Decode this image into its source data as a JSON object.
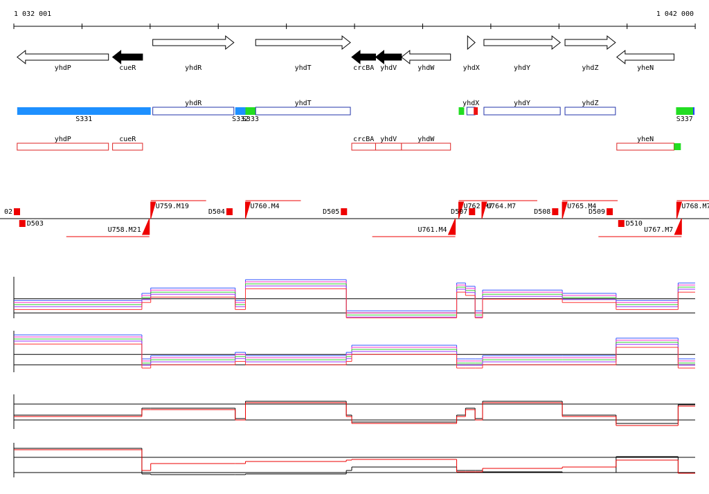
{
  "ruler": {
    "start": {
      "value": 1032001,
      "label": "1 032 001"
    },
    "end": {
      "value": 1042000,
      "label": "1 042 000"
    },
    "tick_interval": 1000
  },
  "genes": [
    {
      "name": "yhdP",
      "start": 1032050,
      "end": 1033390,
      "strand": "-",
      "fill": "#ffffff"
    },
    {
      "name": "cueR",
      "start": 1033450,
      "end": 1033890,
      "strand": "-",
      "fill": "#000000"
    },
    {
      "name": "yhdR",
      "start": 1034040,
      "end": 1035230,
      "strand": "+",
      "fill": "#ffffff"
    },
    {
      "name": "yhdT",
      "start": 1035550,
      "end": 1036940,
      "strand": "+",
      "fill": "#ffffff"
    },
    {
      "name": "crcBA",
      "start": 1036960,
      "end": 1037310,
      "strand": "-",
      "fill": "#000000"
    },
    {
      "name": "yhdV",
      "start": 1037310,
      "end": 1037690,
      "strand": "-",
      "fill": "#000000"
    },
    {
      "name": "yhdW",
      "start": 1037690,
      "end": 1038410,
      "strand": "-",
      "fill": "#ffffff"
    },
    {
      "name": "yhdX",
      "start": 1038660,
      "end": 1038770,
      "strand": "+",
      "fill": "#ffffff"
    },
    {
      "name": "yhdY",
      "start": 1038900,
      "end": 1040020,
      "strand": "+",
      "fill": "#ffffff"
    },
    {
      "name": "yhdZ",
      "start": 1040090,
      "end": 1040830,
      "strand": "+",
      "fill": "#ffffff"
    },
    {
      "name": "yheN",
      "start": 1040850,
      "end": 1041690,
      "strand": "-",
      "fill": "#ffffff"
    }
  ],
  "feature_rows": [
    [
      {
        "label": "S331",
        "start": 1032050,
        "end": 1034010,
        "color": "#1e90ff",
        "style": "fill"
      },
      {
        "label": "yhdR",
        "start": 1034040,
        "end": 1035230,
        "color": "#2233aa",
        "style": "outline"
      },
      {
        "label": "S332",
        "start": 1035250,
        "end": 1035400,
        "color": "#1e90ff",
        "style": "fill"
      },
      {
        "label": "S333",
        "start": 1035400,
        "end": 1035550,
        "color": "#22dd22",
        "style": "fill"
      },
      {
        "label": "yhdT",
        "start": 1035550,
        "end": 1036940,
        "color": "#2233aa",
        "style": "outline"
      },
      {
        "start": 1038530,
        "end": 1038610,
        "color": "#22dd22",
        "style": "fill"
      },
      {
        "label": "yhdX",
        "start": 1038650,
        "end": 1038770,
        "color": "#2233aa",
        "style": "outline"
      },
      {
        "start": 1038750,
        "end": 1038810,
        "color": "#ee1111",
        "style": "fill"
      },
      {
        "label": "yhdY",
        "start": 1038900,
        "end": 1040020,
        "color": "#2233aa",
        "style": "outline"
      },
      {
        "label": "yhdZ",
        "start": 1040090,
        "end": 1040830,
        "color": "#2233aa",
        "style": "outline"
      },
      {
        "label": "S337",
        "start": 1041720,
        "end": 1041970,
        "color": "#22dd22",
        "style": "fill"
      },
      {
        "start": 1041970,
        "end": 1041990,
        "color": "#1e3cff",
        "style": "fill"
      }
    ],
    [
      {
        "label": "yhdP",
        "start": 1032050,
        "end": 1033390,
        "color": "#dd2222",
        "style": "outline"
      },
      {
        "label": "cueR",
        "start": 1033450,
        "end": 1033890,
        "color": "#dd2222",
        "style": "outline"
      },
      {
        "label": "crcBA",
        "start": 1036960,
        "end": 1037310,
        "color": "#dd2222",
        "style": "outline"
      },
      {
        "label": "yhdV",
        "start": 1037310,
        "end": 1037690,
        "color": "#dd2222",
        "style": "outline"
      },
      {
        "label": "yhdW",
        "start": 1037690,
        "end": 1038410,
        "color": "#dd2222",
        "style": "outline"
      },
      {
        "label": "yheN",
        "start": 1040850,
        "end": 1041690,
        "color": "#dd2222",
        "style": "outline"
      },
      {
        "start": 1041690,
        "end": 1041790,
        "color": "#22dd22",
        "style": "fill"
      }
    ]
  ],
  "segments": [
    {
      "label": "02",
      "pos": 1032001,
      "strand": "+"
    },
    {
      "label": "D503",
      "pos": 1032080,
      "strand": "-"
    },
    {
      "label": "U758.M21",
      "pos": 1033990,
      "strand": "-"
    },
    {
      "label": "U759.M19",
      "pos": 1034010,
      "strand": "+"
    },
    {
      "label": "D504",
      "pos": 1035120,
      "strand": "+"
    },
    {
      "label": "U760.M4",
      "pos": 1035400,
      "strand": "+"
    },
    {
      "label": "D505",
      "pos": 1036800,
      "strand": "+"
    },
    {
      "label": "U762.M7",
      "pos": 1038530,
      "strand": "+"
    },
    {
      "label": "D507",
      "pos": 1038680,
      "strand": "+"
    },
    {
      "label": "U764.M7",
      "pos": 1038870,
      "strand": "+"
    },
    {
      "label": "D508",
      "pos": 1039900,
      "strand": "+"
    },
    {
      "label": "U765.M4",
      "pos": 1040050,
      "strand": "+"
    },
    {
      "label": "D509",
      "pos": 1040700,
      "strand": "+"
    },
    {
      "label": "U761.M4",
      "pos": 1038480,
      "strand": "-"
    },
    {
      "label": "D510",
      "pos": 1040870,
      "strand": "-"
    },
    {
      "label": "U767.M7",
      "pos": 1041800,
      "strand": "-"
    },
    {
      "label": "U768.M7",
      "pos": 1041730,
      "strand": "+"
    }
  ],
  "breakpoints": [
    1032001,
    1033880,
    1034010,
    1035250,
    1035400,
    1036880,
    1036960,
    1038500,
    1038630,
    1038770,
    1038880,
    1040050,
    1040840,
    1041750,
    1042000
  ],
  "tracks": [
    {
      "ylim": [
        0,
        1
      ],
      "hlines": [
        0.47,
        0.13
      ],
      "series": [
        {
          "color": "#3355ff",
          "values": [
            0.43,
            0.6,
            0.73,
            0.43,
            0.93,
            0.18,
            0.18,
            0.85,
            0.77,
            0.18,
            0.68,
            0.6,
            0.43,
            0.85
          ]
        },
        {
          "color": "#ff33cc",
          "values": [
            0.38,
            0.55,
            0.68,
            0.38,
            0.88,
            0.13,
            0.13,
            0.8,
            0.72,
            0.13,
            0.63,
            0.55,
            0.38,
            0.8
          ]
        },
        {
          "color": "#33cc33",
          "values": [
            0.33,
            0.5,
            0.63,
            0.33,
            0.83,
            0.08,
            0.08,
            0.75,
            0.67,
            0.08,
            0.58,
            0.5,
            0.33,
            0.75
          ]
        },
        {
          "color": "#9933ff",
          "values": [
            0.28,
            0.45,
            0.58,
            0.28,
            0.78,
            0.03,
            0.03,
            0.7,
            0.62,
            0.03,
            0.53,
            0.45,
            0.28,
            0.7
          ]
        },
        {
          "color": "#ff3333",
          "values": [
            0.21,
            0.38,
            0.51,
            0.21,
            0.71,
            0.01,
            0.01,
            0.63,
            0.55,
            0.01,
            0.46,
            0.38,
            0.21,
            0.63
          ]
        }
      ]
    },
    {
      "ylim": [
        0,
        1
      ],
      "hlines": [
        0.43,
        0.18
      ],
      "series": [
        {
          "color": "#3355ff",
          "values": [
            0.9,
            0.32,
            0.4,
            0.48,
            0.4,
            0.48,
            0.65,
            0.32,
            0.32,
            0.32,
            0.4,
            0.4,
            0.82,
            0.32
          ]
        },
        {
          "color": "#ff33cc",
          "values": [
            0.85,
            0.27,
            0.35,
            0.43,
            0.35,
            0.43,
            0.6,
            0.27,
            0.27,
            0.27,
            0.35,
            0.35,
            0.77,
            0.27
          ]
        },
        {
          "color": "#33cc33",
          "values": [
            0.8,
            0.22,
            0.3,
            0.38,
            0.3,
            0.38,
            0.55,
            0.22,
            0.22,
            0.22,
            0.3,
            0.3,
            0.72,
            0.22
          ]
        },
        {
          "color": "#9933ff",
          "values": [
            0.75,
            0.17,
            0.25,
            0.33,
            0.25,
            0.33,
            0.5,
            0.17,
            0.17,
            0.17,
            0.25,
            0.25,
            0.67,
            0.17
          ]
        },
        {
          "color": "#ff3333",
          "values": [
            0.68,
            0.1,
            0.18,
            0.26,
            0.18,
            0.26,
            0.43,
            0.1,
            0.1,
            0.1,
            0.18,
            0.18,
            0.6,
            0.1
          ]
        }
      ]
    },
    {
      "ylim": [
        0,
        1
      ],
      "hlines": [
        0.72,
        0.26
      ],
      "series": [
        {
          "color": "#000000",
          "values": [
            0.4,
            0.6,
            0.6,
            0.3,
            0.8,
            0.4,
            0.2,
            0.4,
            0.6,
            0.3,
            0.8,
            0.4,
            0.16,
            0.7
          ]
        },
        {
          "color": "#ee0000",
          "values": [
            0.36,
            0.56,
            0.56,
            0.26,
            0.76,
            0.36,
            0.16,
            0.36,
            0.56,
            0.26,
            0.76,
            0.36,
            0.1,
            0.66
          ]
        }
      ]
    },
    {
      "ylim": [
        0,
        1
      ],
      "hlines": [
        0.58,
        0.14
      ],
      "series": [
        {
          "color": "#000000",
          "values": [
            0.84,
            0.1,
            0.08,
            0.08,
            0.1,
            0.2,
            0.3,
            0.2,
            0.2,
            0.2,
            0.16,
            0.14,
            0.6,
            0.12
          ]
        },
        {
          "color": "#ee0000",
          "values": [
            0.8,
            0.2,
            0.4,
            0.4,
            0.46,
            0.5,
            0.52,
            0.16,
            0.16,
            0.16,
            0.26,
            0.3,
            0.5,
            0.12
          ]
        }
      ]
    }
  ]
}
